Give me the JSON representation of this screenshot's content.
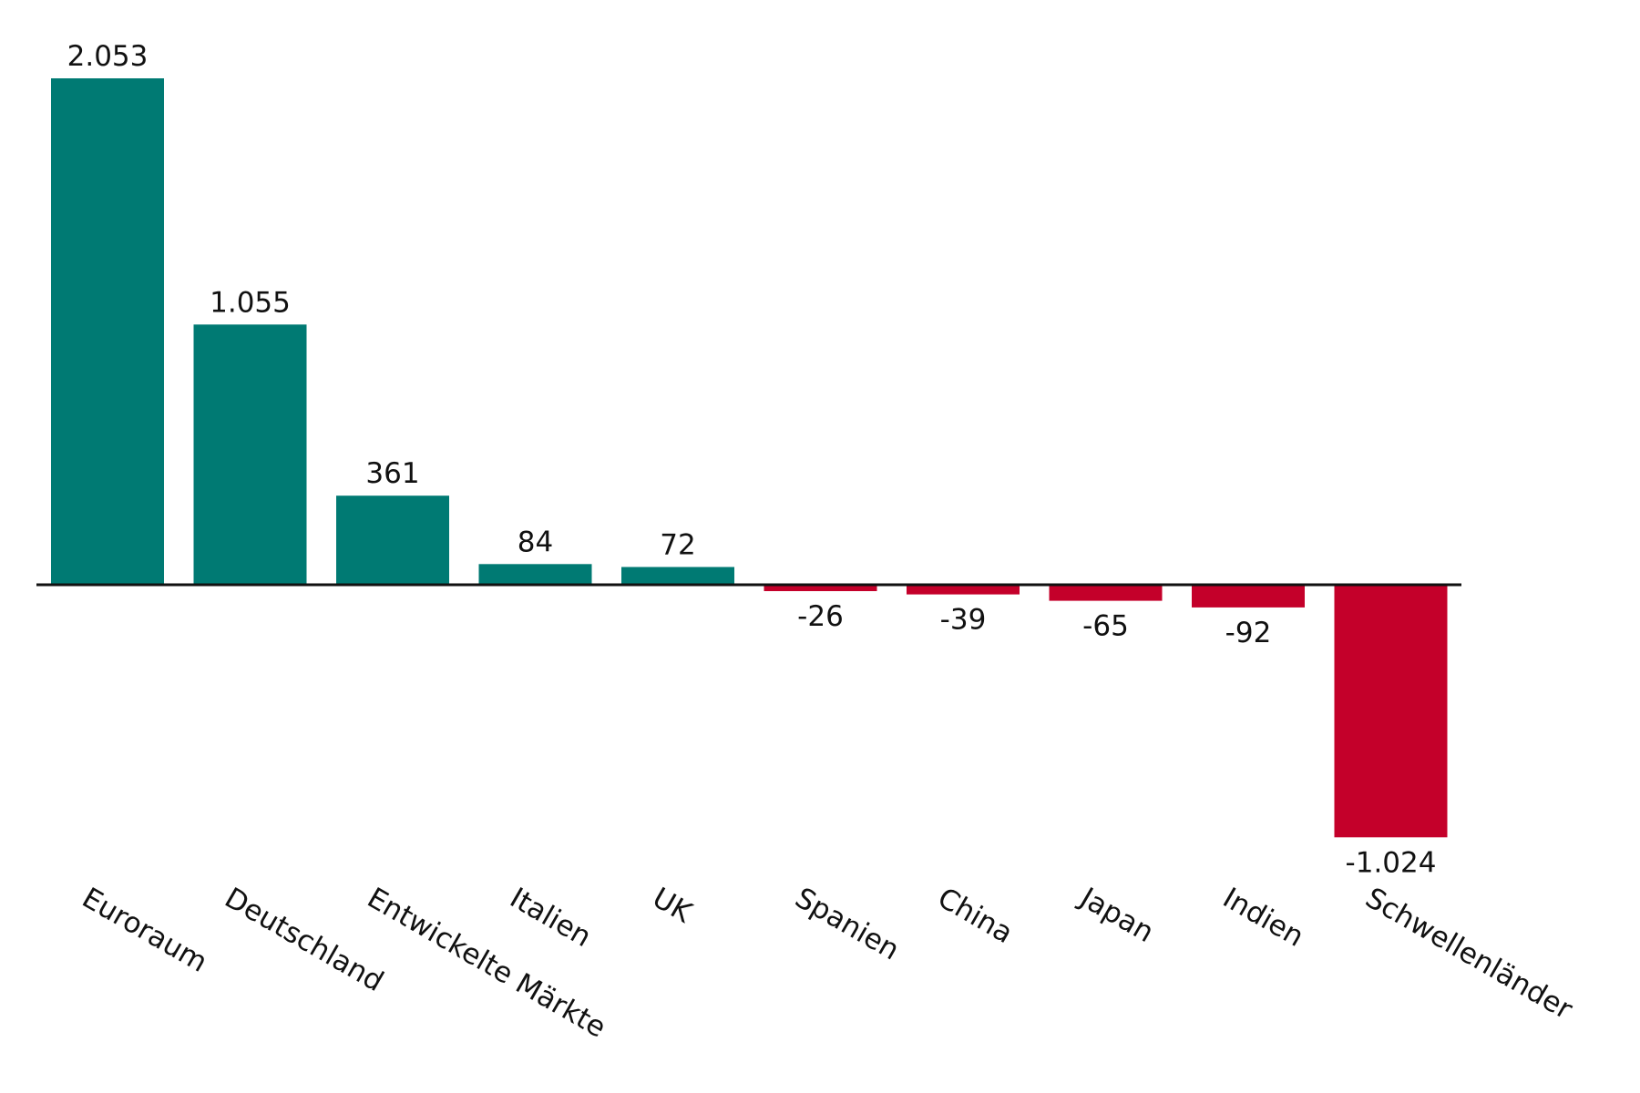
{
  "chart_data": {
    "type": "bar",
    "categories": [
      "Euroraum",
      "Deutschland",
      "Entwickelte Märkte",
      "Italien",
      "UK",
      "Spanien",
      "China",
      "Japan",
      "Indien",
      "Schwellenländer"
    ],
    "values": [
      2053,
      1055,
      361,
      84,
      72,
      -26,
      -39,
      -65,
      -92,
      -1024
    ],
    "value_labels": [
      "2.053",
      "1.055",
      "361",
      "84",
      "72",
      "-26",
      "-39",
      "-65",
      "-92",
      "-1.024"
    ],
    "title": "",
    "xlabel": "",
    "ylabel": "",
    "grid": false,
    "legend": "none",
    "colors": {
      "positive": "#007a73",
      "negative": "#c4002a",
      "axis": "#111111"
    }
  }
}
